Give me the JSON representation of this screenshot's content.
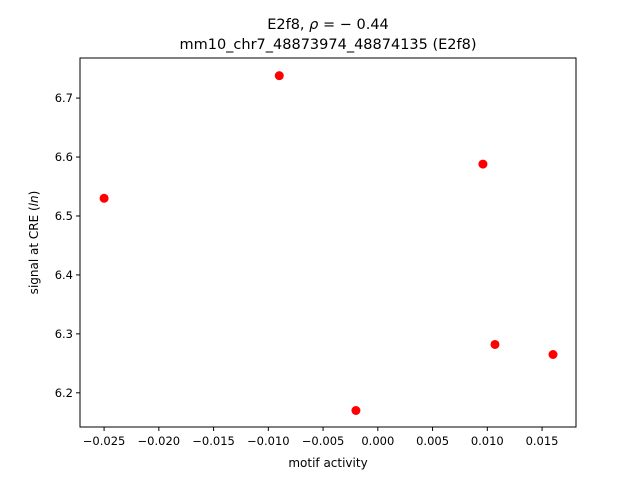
{
  "chart_data": {
    "type": "scatter",
    "title_line1_prefix": "E2f8, ",
    "title_line1_rho": "ρ",
    "title_line1_suffix": " = − 0.44",
    "title_line2": "mm10_chr7_48873974_48874135 (E2f8)",
    "xlabel": "motif activity",
    "ylabel_prefix": "signal at CRE (",
    "ylabel_italic": "ln",
    "ylabel_suffix": ")",
    "xlim": [
      -0.0272,
      0.0181
    ],
    "ylim": [
      6.142,
      6.768
    ],
    "x_ticks": [
      -0.025,
      -0.02,
      -0.015,
      -0.01,
      -0.005,
      0.0,
      0.005,
      0.01,
      0.015
    ],
    "x_tick_labels": [
      "−0.025",
      "−0.020",
      "−0.015",
      "−0.010",
      "−0.005",
      "0.000",
      "0.005",
      "0.010",
      "0.015"
    ],
    "y_ticks": [
      6.2,
      6.3,
      6.4,
      6.5,
      6.6,
      6.7
    ],
    "y_tick_labels": [
      "6.2",
      "6.3",
      "6.4",
      "6.5",
      "6.6",
      "6.7"
    ],
    "points": [
      {
        "x": -0.025,
        "y": 6.53
      },
      {
        "x": -0.009,
        "y": 6.738
      },
      {
        "x": -0.002,
        "y": 6.17
      },
      {
        "x": 0.0096,
        "y": 6.588
      },
      {
        "x": 0.0107,
        "y": 6.282
      },
      {
        "x": 0.016,
        "y": 6.265
      }
    ],
    "marker_color": "#ff0000",
    "grid": false,
    "legend": "none"
  }
}
